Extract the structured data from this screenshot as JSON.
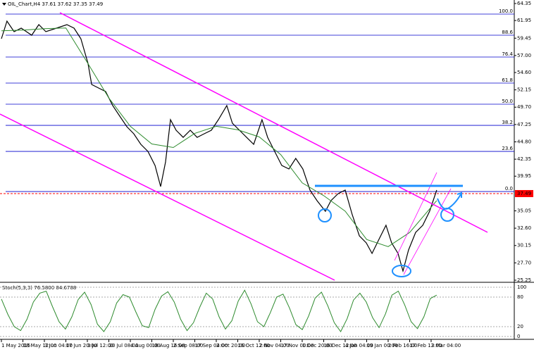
{
  "chart_data": {
    "type": "line",
    "title": "OIL_Chart,H4 37.61 37.62 37.35 37.49",
    "categories": [
      "1 May 2015",
      "18 May 12:00",
      "3 Jun 04:00",
      "17 Jun 20:00",
      "3 Jul 12:00",
      "20 Jul 08:00",
      "4 Aug 00:00",
      "18 Aug 16:00",
      "2 Sep 08:00",
      "17 Sep 04:00",
      "2 Oct 20:00",
      "16 Oct 12:00",
      "2 Nov 04:00",
      "17 Nov 00:00",
      "1 Dec 20:00",
      "16 Dec 12:00",
      "4 Jan 04:00",
      "19 Jan 00:00",
      "2 Feb 16:00",
      "17 Feb 12:00",
      "3 Mar 04:00"
    ],
    "xlim": [
      0,
      23.87
    ],
    "ylim": [
      25.25,
      64.35
    ],
    "yticks": [
      64.35,
      61.95,
      59.45,
      {
        "value": 57,
        "label": "57.00"
      },
      {
        "value": 54.6,
        "label": "54.60"
      },
      52.15,
      {
        "value": 49.7,
        "label": "49.70"
      },
      47.25,
      {
        "value": 44.8,
        "label": "44.80"
      },
      42.35,
      39.95,
      35.05,
      {
        "value": 32.6,
        "label": "32.60"
      },
      30.15,
      {
        "value": 27.7,
        "label": "27.70"
      },
      25.25
    ],
    "series": [
      {
        "color": "#000000",
        "x": [
          0,
          0.26,
          0.59,
          0.92,
          1.41,
          1.74,
          2.07,
          2.56,
          3.05,
          3.38,
          3.7,
          4.03,
          4.2,
          4.52,
          4.85,
          5.18,
          5.51,
          5.84,
          6.16,
          6.49,
          6.82,
          7.15,
          7.41,
          7.64,
          7.87,
          8.13,
          8.46,
          8.79,
          9.11,
          9.44,
          9.77,
          10.1,
          10.49,
          10.75,
          11.08,
          11.41,
          11.74,
          12.13,
          12.39,
          12.72,
          13.05,
          13.38,
          13.7,
          14.03,
          14.36,
          14.69,
          15.08,
          15.34,
          15.67,
          16,
          16.33,
          16.66,
          16.98,
          17.25,
          17.57,
          17.9,
          18.16,
          18.46,
          18.69,
          18.95,
          19.28,
          19.61,
          19.93,
          20.26
        ],
        "values": [
          59.38,
          61.86,
          60.37,
          60.87,
          59.87,
          61.37,
          60.37,
          60.87,
          61.37,
          60.87,
          59.38,
          55.89,
          52.91,
          52.41,
          51.91,
          49.92,
          48.43,
          46.94,
          45.94,
          44.45,
          43.45,
          41.46,
          38.48,
          41.96,
          47.93,
          46.44,
          45.44,
          46.44,
          45.44,
          45.94,
          46.44,
          47.93,
          49.92,
          47.43,
          46.44,
          45.44,
          44.45,
          47.93,
          45.44,
          43.45,
          41.46,
          40.97,
          42.46,
          40.97,
          37.98,
          36.49,
          34.99,
          36.49,
          37.48,
          37.98,
          34.5,
          31.52,
          30.52,
          29.03,
          31.02,
          33.01,
          30.52,
          29.03,
          26.54,
          29.52,
          32.01,
          33.01,
          34.99,
          37.98
        ]
      },
      {
        "color": "#2e8b2e",
        "x": [
          0,
          1,
          2,
          3,
          4,
          5,
          6,
          7,
          8,
          9,
          10,
          11,
          12,
          13,
          14,
          15,
          16,
          17,
          18,
          19,
          20.26
        ],
        "values": [
          60.5,
          60.6,
          60.8,
          60.9,
          56,
          51,
          47,
          44.5,
          44,
          46,
          47,
          46.5,
          45.5,
          43,
          39,
          37.2,
          35,
          31,
          30,
          32,
          36.5
        ]
      }
    ],
    "fib_levels": [
      {
        "label": "100.0",
        "value": 62.86
      },
      {
        "label": "88.6",
        "value": 59.87
      },
      {
        "label": "76.4",
        "value": 56.79
      },
      {
        "label": "61.8",
        "value": 53.11
      },
      {
        "label": "50.0",
        "value": 50.12
      },
      {
        "label": "38.2",
        "value": 47.13
      },
      {
        "label": "23.6",
        "value": 43.45
      },
      {
        "label": "0.0",
        "value": 37.78
      }
    ],
    "current_price": 37.49,
    "indicator": {
      "label": "Stoch(5,3,3) 76.5800 84.6788",
      "ylim": [
        0,
        100
      ],
      "yticks": [
        100,
        80,
        20,
        0
      ],
      "color": "#2e8b2e",
      "values": [
        76,
        45,
        20,
        12,
        35,
        70,
        88,
        92,
        60,
        30,
        15,
        40,
        75,
        90,
        65,
        25,
        10,
        30,
        68,
        85,
        80,
        50,
        22,
        18,
        55,
        82,
        91,
        70,
        35,
        12,
        28,
        60,
        88,
        76,
        40,
        15,
        32,
        72,
        94,
        66,
        30,
        20,
        48,
        80,
        86,
        58,
        24,
        14,
        42,
        78,
        90,
        62,
        28,
        10,
        36,
        74,
        88,
        70,
        38,
        18,
        46,
        84,
        92,
        64,
        30,
        16,
        40,
        77,
        84
      ]
    }
  }
}
